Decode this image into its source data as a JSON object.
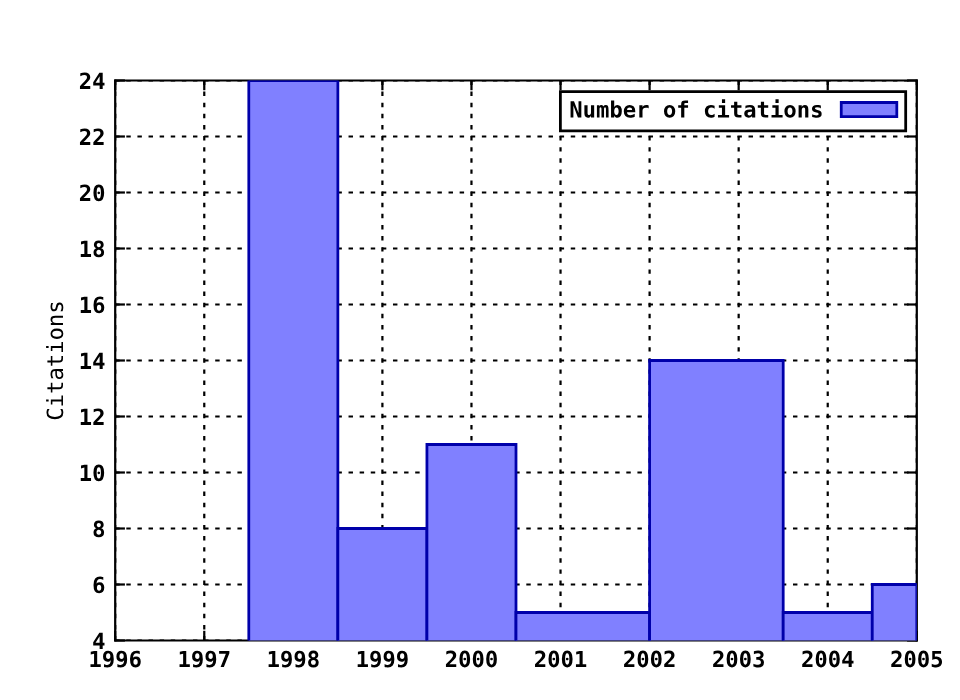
{
  "chart_data": {
    "type": "histogram",
    "ylabel": "Citations",
    "bins": [
      1997.5,
      1998.5,
      1999.5,
      2000.5,
      2002,
      2003.5,
      2004.5,
      2005
    ],
    "series": [
      {
        "name": "Number of citations",
        "color": "#8080ff",
        "values": [
          24,
          8,
          11,
          5,
          14,
          5,
          6
        ]
      }
    ],
    "xlim": [
      1996,
      2005
    ],
    "xticks": [
      1996,
      1997,
      1998,
      1999,
      2000,
      2001,
      2002,
      2003,
      2004,
      2005
    ],
    "ylim": [
      4,
      24
    ],
    "yticks": [
      4,
      6,
      8,
      10,
      12,
      14,
      16,
      18,
      20,
      22,
      24
    ],
    "grid": true,
    "legend": "top right"
  }
}
